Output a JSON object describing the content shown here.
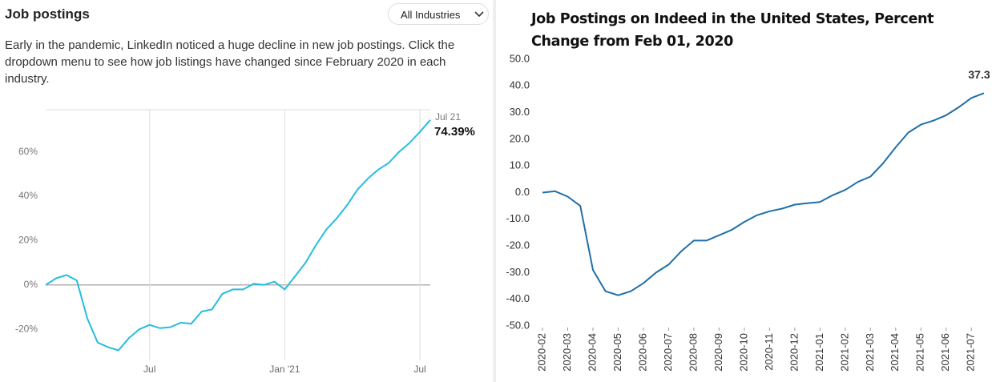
{
  "chart_data": [
    {
      "type": "line",
      "title": "Job postings",
      "dropdown": "All Industries",
      "description": "Early in the pandemic, LinkedIn noticed a huge decline in new job postings. Click the dropdown menu to see how job listings have changed since February 2020 in each industry.",
      "categories": [
        null,
        null,
        null,
        null,
        null,
        null,
        null,
        null,
        null,
        null,
        "Jul",
        null,
        null,
        null,
        null,
        null,
        null,
        null,
        null,
        null,
        null,
        null,
        null,
        "Jan '21",
        null,
        null,
        null,
        null,
        null,
        null,
        null,
        null,
        null,
        null,
        null,
        null,
        "Jul",
        null
      ],
      "values": [
        0,
        3,
        4.5,
        2,
        -15,
        -26,
        -28,
        -29.5,
        -24,
        -20,
        -18,
        -19.5,
        -19,
        -17,
        -17.5,
        -12,
        -11,
        -4,
        -2,
        -2,
        0.5,
        0,
        1.5,
        -2,
        4,
        10,
        18,
        25,
        30,
        36,
        43,
        48,
        52,
        55,
        60,
        64,
        69,
        74.39
      ],
      "value_labels": [
        null,
        null,
        null,
        null,
        null,
        null,
        null,
        null,
        null,
        null,
        null,
        null,
        null,
        null,
        null,
        null,
        null,
        null,
        null,
        null,
        null,
        null,
        null,
        null,
        null,
        null,
        null,
        null,
        null,
        null,
        null,
        null,
        null,
        null,
        null,
        null,
        null,
        "74.39%"
      ],
      "end_label": "Jul 21",
      "color": "#26bddf",
      "ylim": [
        -34,
        79
      ],
      "yticks": [
        {
          "value": -20,
          "label": "-20%"
        },
        {
          "value": 0,
          "label": "0%"
        },
        {
          "value": 20,
          "label": "20%"
        },
        {
          "value": 40,
          "label": "40%"
        },
        {
          "value": 60,
          "label": "60%"
        }
      ],
      "grid": "x"
    },
    {
      "type": "line",
      "title": "Job Postings on Indeed in the United States, Percent Change from Feb 01, 2020",
      "categories": [
        "2020-02",
        null,
        "2020-03",
        null,
        "2020-04",
        null,
        "2020-05",
        null,
        "2020-06",
        null,
        "2020-07",
        null,
        "2020-08",
        null,
        "2020-09",
        null,
        "2020-10",
        null,
        "2020-11",
        null,
        "2020-12",
        null,
        "2021-01",
        null,
        "2021-02",
        null,
        "2021-03",
        null,
        "2021-04",
        null,
        "2021-05",
        null,
        "2021-06",
        null,
        "2021-07",
        null
      ],
      "values": [
        0,
        0.5,
        -1.5,
        -5,
        -29,
        -37,
        -38.5,
        -37,
        -34,
        -30,
        -27,
        -22,
        -18,
        -18,
        -16,
        -14,
        -11,
        -8.5,
        -7,
        -6,
        -4.5,
        -4,
        -3.5,
        -1,
        1,
        4,
        6,
        11,
        17,
        22.5,
        25.5,
        27,
        29,
        32,
        35.5,
        37.3
      ],
      "color": "#1f6fa8",
      "ylim": [
        -50,
        50
      ],
      "yticks": [
        {
          "value": -50,
          "label": "-50.0"
        },
        {
          "value": -40,
          "label": "-40.0"
        },
        {
          "value": -30,
          "label": "-30.0"
        },
        {
          "value": -20,
          "label": "-20.0"
        },
        {
          "value": -10,
          "label": "-10.0"
        },
        {
          "value": 0,
          "label": "0.0"
        },
        {
          "value": 10,
          "label": "10.0"
        },
        {
          "value": 20,
          "label": "20.0"
        },
        {
          "value": 30,
          "label": "30.0"
        },
        {
          "value": 40,
          "label": "40.0"
        },
        {
          "value": 50,
          "label": "50.0"
        }
      ],
      "grid": false
    }
  ]
}
